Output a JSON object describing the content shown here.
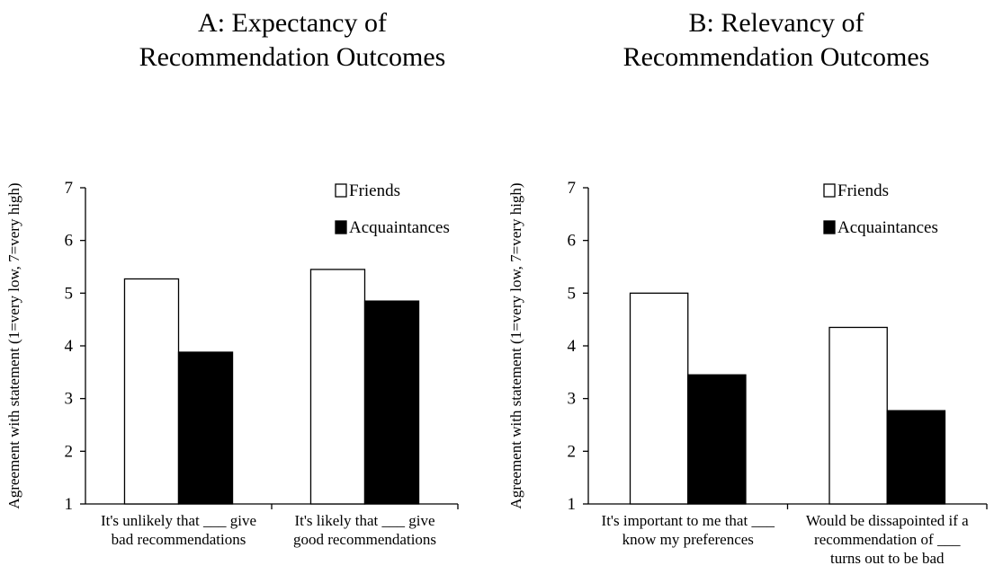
{
  "chart_data": [
    {
      "type": "bar",
      "title": [
        "A: Expectancy of",
        "Recommendation Outcomes"
      ],
      "ylabel": "Agreement with statement (1=very low, 7=very high)",
      "ylim": [
        1,
        7
      ],
      "yticks": [
        "1",
        "2",
        "3",
        "4",
        "5",
        "6",
        "7"
      ],
      "categories": [
        [
          "It's unlikely that ___ give",
          "bad recommendations"
        ],
        [
          "It's likely that ___ give",
          "good recommendations"
        ]
      ],
      "series": [
        {
          "name": "Friends",
          "color": "#ffffff",
          "values": [
            5.27,
            5.45
          ]
        },
        {
          "name": "Acquaintances",
          "color": "#000000",
          "values": [
            3.88,
            4.85
          ]
        }
      ],
      "legend": "top-right",
      "grid": false
    },
    {
      "type": "bar",
      "title": [
        "B: Relevancy of",
        "Recommendation Outcomes"
      ],
      "ylabel": "Agreement with statement (1=very low, 7=very high)",
      "ylim": [
        1,
        7
      ],
      "yticks": [
        "1",
        "2",
        "3",
        "4",
        "5",
        "6",
        "7"
      ],
      "categories": [
        [
          "It's important to me that ___",
          "know my preferences"
        ],
        [
          "Would be dissapointed if a",
          "recommendation of ___",
          "turns out to be bad"
        ]
      ],
      "series": [
        {
          "name": "Friends",
          "color": "#ffffff",
          "values": [
            5.0,
            4.35
          ]
        },
        {
          "name": "Acquaintances",
          "color": "#000000",
          "values": [
            3.45,
            2.77
          ]
        }
      ],
      "legend": "top-right",
      "grid": false
    }
  ]
}
